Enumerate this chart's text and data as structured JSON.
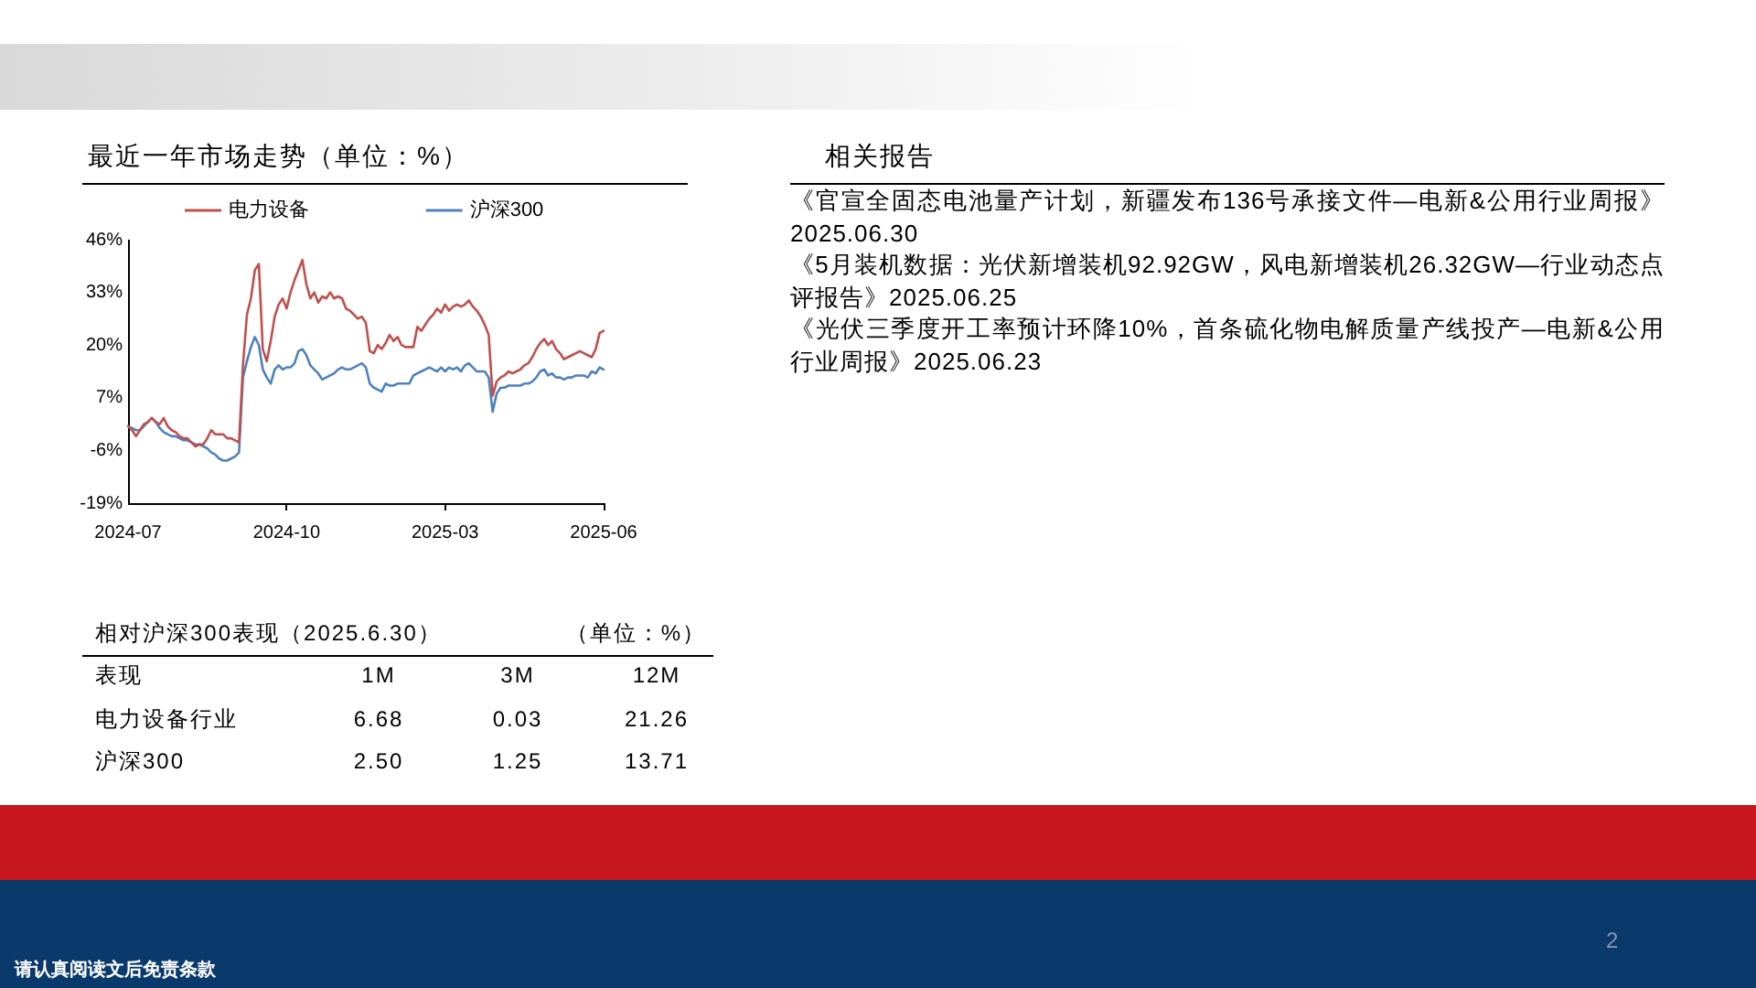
{
  "chart_data": [
    {
      "type": "line",
      "title": "最近一年市场走势（单位：%）",
      "categories": [
        "2024-07",
        null,
        null,
        null,
        null,
        null,
        null,
        null,
        null,
        null,
        null,
        null,
        null,
        null,
        null,
        null,
        null,
        null,
        null,
        null,
        null,
        null,
        null,
        null,
        null,
        null,
        null,
        null,
        null,
        null,
        null,
        null,
        null,
        null,
        null,
        null,
        null,
        null,
        null,
        null,
        "2024-10",
        null,
        null,
        null,
        null,
        null,
        null,
        null,
        null,
        null,
        null,
        null,
        null,
        null,
        null,
        null,
        null,
        null,
        null,
        null,
        null,
        null,
        null,
        null,
        null,
        null,
        null,
        null,
        null,
        null,
        null,
        null,
        null,
        null,
        null,
        null,
        null,
        null,
        null,
        null,
        "2025-03",
        null,
        null,
        null,
        null,
        null,
        null,
        null,
        null,
        null,
        null,
        null,
        null,
        null,
        null,
        null,
        null,
        null,
        null,
        null,
        null,
        null,
        null,
        null,
        null,
        null,
        null,
        null,
        null,
        null,
        null,
        null,
        null,
        null,
        null,
        null,
        null,
        null,
        null,
        null,
        "2025-06"
      ],
      "series": [
        {
          "name": "电力设备",
          "color": "#c0504d",
          "values": [
            0,
            -1,
            -2.5,
            -1,
            0.5,
            1,
            2,
            1,
            0.5,
            2,
            0,
            -1,
            -1.5,
            -2.5,
            -3,
            -3,
            -4,
            -5,
            -4.5,
            -4.5,
            -3,
            -1,
            -2,
            -2,
            -2,
            -3,
            -3,
            -3.5,
            -4,
            15,
            27.5,
            31.5,
            38.5,
            40,
            19,
            16,
            21,
            27,
            30,
            31.5,
            29,
            33,
            36,
            38.5,
            41,
            35,
            31.5,
            33,
            30.5,
            32,
            31.5,
            33,
            31.5,
            32,
            31.5,
            29,
            28.5,
            27.5,
            26.5,
            27,
            25.5,
            18.5,
            18,
            20,
            19,
            20.5,
            22.5,
            21,
            22,
            20,
            19.5,
            19.5,
            19.5,
            24.5,
            23.5,
            25,
            26.5,
            27.5,
            29,
            28,
            30,
            28.5,
            29.5,
            30,
            29.5,
            30,
            31,
            29.5,
            28.5,
            27,
            25,
            22.5,
            7.5,
            11,
            12,
            12.5,
            13.5,
            13,
            13.5,
            14,
            15,
            15.5,
            17,
            19,
            20.5,
            21.5,
            20,
            21,
            19,
            18,
            16.5,
            17,
            17.5,
            18,
            18.5,
            18,
            17.5,
            17,
            19,
            23,
            23.5
          ]
        },
        {
          "name": "沪深300",
          "color": "#4f81bd",
          "values": [
            0,
            -0.5,
            -1,
            -1,
            0,
            1,
            2,
            1,
            -0.5,
            -1.5,
            -2,
            -2.5,
            -2.5,
            -3,
            -3.5,
            -3.5,
            -4,
            -4.5,
            -4.5,
            -5,
            -5.5,
            -6.5,
            -7,
            -8,
            -8.5,
            -8.5,
            -8,
            -7.5,
            -6.5,
            12,
            16,
            19.5,
            22,
            20,
            14,
            12,
            10.5,
            14,
            15,
            14,
            14.5,
            14.5,
            15.5,
            18.5,
            19,
            17.5,
            15,
            14,
            13,
            11.5,
            12,
            12.5,
            13,
            14,
            14.5,
            14,
            14,
            14.5,
            15,
            15.5,
            14.5,
            10.5,
            9.5,
            9,
            8.5,
            10.5,
            10,
            10,
            10.5,
            10.5,
            10.5,
            10.5,
            12.5,
            13,
            13.5,
            14,
            14.5,
            14,
            13.5,
            14.5,
            13.5,
            14.5,
            14,
            14.5,
            13.5,
            15,
            15.5,
            14.5,
            13.5,
            13.5,
            13.5,
            12,
            3.5,
            8,
            9.5,
            9.5,
            10,
            10,
            10,
            10,
            10.5,
            10.5,
            11,
            12,
            13.5,
            14,
            12.5,
            13,
            12,
            12,
            11.5,
            12,
            12,
            12.5,
            12.5,
            12.5,
            12,
            13.5,
            13,
            14.5,
            14
          ]
        }
      ],
      "ylim": [
        -19,
        46
      ],
      "yticks": [
        {
          "value": -19,
          "label": "-19%"
        },
        {
          "value": -6,
          "label": "-6%"
        },
        {
          "value": 7,
          "label": "7%"
        },
        {
          "value": 20,
          "label": "20%"
        },
        {
          "value": 33,
          "label": "33%"
        },
        {
          "value": 46,
          "label": "46%"
        }
      ],
      "legend": "top",
      "marker": "none"
    },
    {
      "type": "other",
      "title": "相对沪深300表现（2025.6.30）",
      "subtitle": "（单位：%）",
      "annotations": [
        "表现"
      ],
      "categories": [
        "1M",
        "3M",
        "12M"
      ],
      "series": [
        {
          "name": "电力设备行业",
          "values": [
            6.68,
            0.03,
            21.26
          ],
          "value_labels": [
            "6.68",
            "0.03",
            "21.26"
          ]
        },
        {
          "name": "沪深300",
          "values": [
            2.5,
            1.25,
            13.71
          ],
          "value_labels": [
            "2.50",
            "1.25",
            "13.71"
          ]
        }
      ]
    },
    {
      "type": "other",
      "title": "相关报告",
      "annotations": [
        "《官宣全固态电池量产计划，新疆发布136号承接文件—电新&公用行业周报》2025.06.30",
        "《5月装机数据：光伏新增装机92.92GW，风电新增装机26.32GW—行业动态点评报告》2025.06.25",
        "《光伏三季度开工率预计环降10%，首条硫化物电解质量产线投产—电新&公用行业周报》2025.06.23"
      ]
    },
    {
      "type": "other",
      "annotations": [
        "2",
        "请认真阅读文后免责条款"
      ]
    }
  ]
}
